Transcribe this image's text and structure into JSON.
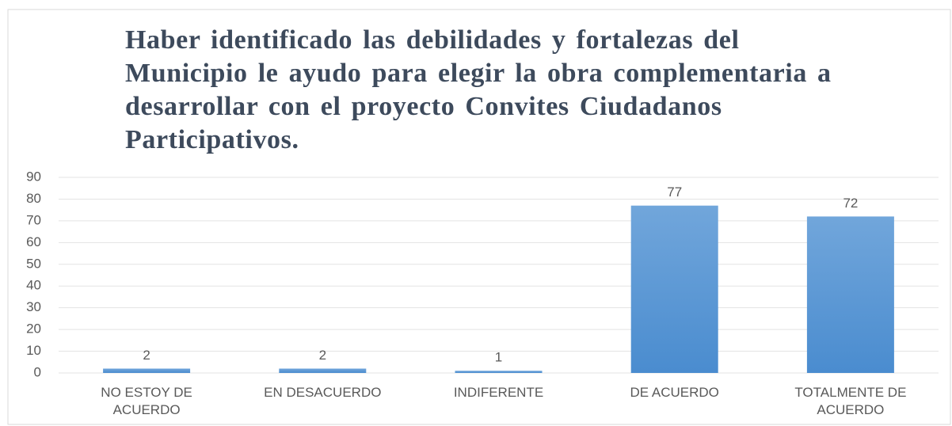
{
  "chart_data": {
    "type": "bar",
    "title": "Haber identificado las debilidades y fortalezas del Municipio le ayudo para elegir la  obra complementaria a desarrollar con el proyecto Convites Ciudadanos Participativos.",
    "categories": [
      "NO ESTOY DE ACUERDO",
      "EN DESACUERDO",
      "INDIFERENTE",
      "DE ACUERDO",
      "TOTALMENTE DE ACUERDO"
    ],
    "values": [
      2,
      2,
      1,
      77,
      72
    ],
    "color": "#5b9bd5",
    "ylim": [
      0,
      90
    ],
    "yticks": [
      0,
      10,
      20,
      30,
      40,
      50,
      60,
      70,
      80,
      90
    ],
    "grid": true
  }
}
